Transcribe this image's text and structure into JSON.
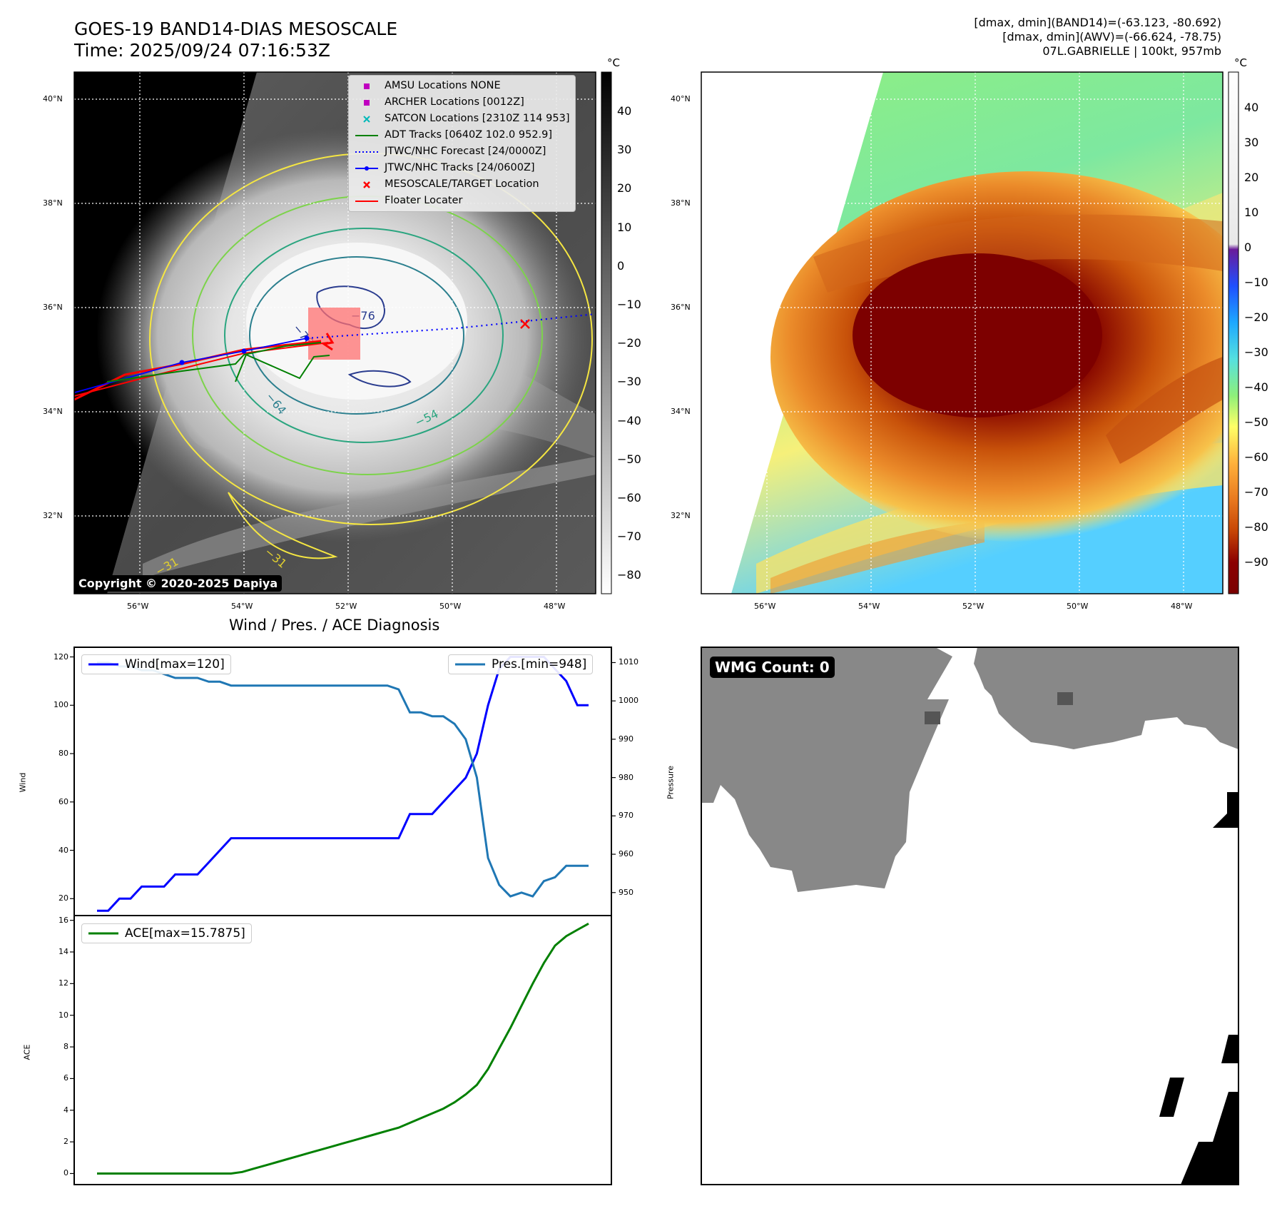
{
  "header": {
    "title_line1": "GOES-19 BAND14-DIAS MESOSCALE",
    "title_line2": "Time: 2025/09/24 07:16:53Z",
    "right_line1": "[dmax, dmin](BAND14)=(-63.123, -80.692)",
    "right_line2": "[dmax, dmin](AWV)=(-66.624, -78.75)",
    "right_line3": "07L.GABRIELLE | 100kt, 957mb"
  },
  "ir_panel": {
    "lat_labels": [
      "40°N",
      "38°N",
      "36°N",
      "34°N",
      "32°N"
    ],
    "lon_labels": [
      "56°W",
      "54°W",
      "52°W",
      "50°W",
      "48°W"
    ],
    "unit": "°C",
    "colorbar_ticks": [
      "40",
      "30",
      "20",
      "10",
      "0",
      "−10",
      "−20",
      "−30",
      "−40",
      "−50",
      "−60",
      "−70",
      "−80"
    ],
    "copyright": "Copyright © 2020-2025 Dapiya",
    "contour_labels": [
      "−76",
      "−76",
      "−64",
      "−54",
      "−31",
      "−31"
    ],
    "legend": [
      {
        "label": "AMSU Locations NONE",
        "marker": "square",
        "color": "#c000c0"
      },
      {
        "label": "ARCHER Locations [0012Z]",
        "marker": "square",
        "color": "#c000c0"
      },
      {
        "label": "SATCON Locations [2310Z 114 953]",
        "marker": "x",
        "color": "#00b8b8"
      },
      {
        "label": "ADT Tracks [0640Z 102.0 952.9]",
        "marker": "line",
        "color": "#008000"
      },
      {
        "label": "JTWC/NHC Forecast [24/0000Z]",
        "marker": "dotted",
        "color": "#0000ff"
      },
      {
        "label": "JTWC/NHC Tracks [24/0600Z]",
        "marker": "line-dot",
        "color": "#0000ff"
      },
      {
        "label": "MESOSCALE/TARGET Location",
        "marker": "x",
        "color": "#ff0000"
      },
      {
        "label": "Floater Locater",
        "marker": "line",
        "color": "#ff0000"
      }
    ]
  },
  "enh_panel": {
    "lat_labels": [
      "40°N",
      "38°N",
      "36°N",
      "34°N",
      "32°N"
    ],
    "lon_labels": [
      "56°W",
      "54°W",
      "52°W",
      "50°W",
      "48°W"
    ],
    "unit": "°C",
    "colorbar_ticks": [
      "40",
      "30",
      "20",
      "10",
      "0",
      "−10",
      "−20",
      "−30",
      "−40",
      "−50",
      "−60",
      "−70",
      "−80",
      "−90"
    ]
  },
  "wmg_panel": {
    "label": "WMG Count: 0"
  },
  "colors": {
    "wind": "#0000ff",
    "pressure": "#1f77b4",
    "ace": "#008000",
    "wmg_gray": "#888888"
  },
  "chart_data": [
    {
      "type": "line",
      "title": "Wind / Pres. / ACE Diagnosis",
      "ylabel": "Wind",
      "ylabel_right": "Pressure",
      "ylim": [
        13,
        124
      ],
      "ylim_right": [
        944,
        1014
      ],
      "yticks": [
        20,
        40,
        60,
        80,
        100,
        120
      ],
      "yticks_right": [
        950,
        960,
        970,
        980,
        990,
        1000,
        1010
      ],
      "x": [
        0,
        1,
        2,
        3,
        4,
        5,
        6,
        7,
        8,
        9,
        10,
        11,
        12,
        13,
        14,
        15,
        16,
        17,
        18,
        19,
        20,
        21,
        22,
        23,
        24,
        25,
        26,
        27,
        28,
        29,
        30,
        31,
        32,
        33,
        34,
        35,
        36,
        37,
        38,
        39,
        40,
        41,
        42,
        43,
        44
      ],
      "series": [
        {
          "name": "Wind[max=120]",
          "axis": "left",
          "values": [
            15,
            15,
            20,
            20,
            25,
            25,
            25,
            30,
            30,
            30,
            35,
            40,
            45,
            45,
            45,
            45,
            45,
            45,
            45,
            45,
            45,
            45,
            45,
            45,
            45,
            45,
            45,
            45,
            55,
            55,
            55,
            60,
            65,
            70,
            80,
            100,
            115,
            120,
            120,
            120,
            120,
            115,
            110,
            100,
            100
          ]
        },
        {
          "name": "Pres.[min=948]",
          "axis": "right",
          "values": [
            1010,
            1010,
            1009,
            1009,
            1008,
            1008,
            1007,
            1006,
            1006,
            1006,
            1005,
            1005,
            1004,
            1004,
            1004,
            1004,
            1004,
            1004,
            1004,
            1004,
            1004,
            1004,
            1004,
            1004,
            1004,
            1004,
            1004,
            1003,
            997,
            997,
            996,
            996,
            994,
            990,
            980,
            959,
            952,
            949,
            950,
            949,
            953,
            954,
            957,
            957,
            957
          ]
        }
      ]
    },
    {
      "type": "line",
      "ylabel": "ACE",
      "ylim": [
        -0.7,
        16.3
      ],
      "yticks": [
        0,
        2,
        4,
        6,
        8,
        10,
        12,
        14,
        16
      ],
      "x": [
        0,
        1,
        2,
        3,
        4,
        5,
        6,
        7,
        8,
        9,
        10,
        11,
        12,
        13,
        14,
        15,
        16,
        17,
        18,
        19,
        20,
        21,
        22,
        23,
        24,
        25,
        26,
        27,
        28,
        29,
        30,
        31,
        32,
        33,
        34,
        35,
        36,
        37,
        38,
        39,
        40,
        41,
        42,
        43,
        44
      ],
      "series": [
        {
          "name": "ACE[max=15.7875]",
          "values": [
            0,
            0,
            0,
            0,
            0,
            0,
            0,
            0,
            0,
            0,
            0,
            0,
            0,
            0.1,
            0.3,
            0.5,
            0.7,
            0.9,
            1.1,
            1.3,
            1.5,
            1.7,
            1.9,
            2.1,
            2.3,
            2.5,
            2.7,
            2.9,
            3.2,
            3.5,
            3.8,
            4.1,
            4.5,
            5.0,
            5.6,
            6.6,
            7.9,
            9.2,
            10.6,
            12.0,
            13.3,
            14.4,
            15.0,
            15.4,
            15.79
          ]
        }
      ]
    }
  ]
}
